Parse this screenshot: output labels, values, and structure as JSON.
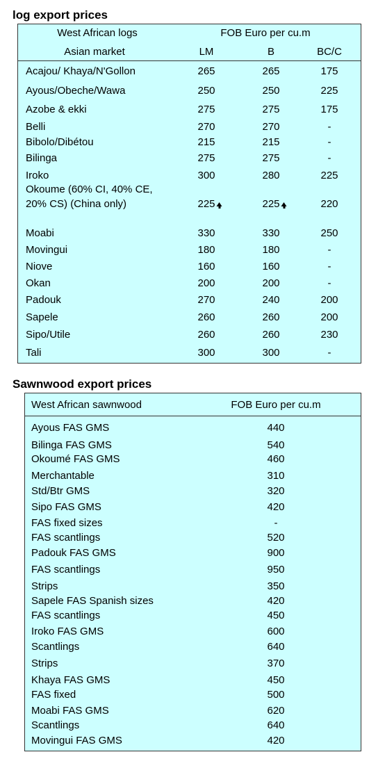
{
  "log_table": {
    "title": "log export prices",
    "header": {
      "group": "West African logs",
      "unit": "FOB Euro per cu.m",
      "market": "Asian market",
      "columns": [
        "LM",
        "B",
        "BC/C"
      ]
    },
    "rows": [
      [
        "Acajou/ Khaya/N'Gollon",
        265,
        265,
        175
      ],
      [
        "Ayous/Obeche/Wawa",
        250,
        250,
        225
      ],
      [
        "Azobe & ekki",
        275,
        275,
        175
      ],
      [
        "Belli",
        270,
        270,
        "-"
      ],
      [
        "Bibolo/Dibétou",
        215,
        215,
        "-"
      ],
      [
        "Bilinga",
        275,
        275,
        "-"
      ],
      [
        "Iroko",
        300,
        280,
        225
      ],
      [
        "Okoume (60% CI, 40% CE, 20% CS) (China only)",
        225,
        225,
        220
      ],
      [
        "Moabi",
        330,
        330,
        250
      ],
      [
        "Movingui",
        180,
        180,
        "-"
      ],
      [
        "Niove",
        160,
        160,
        "-"
      ],
      [
        "Okan",
        200,
        200,
        "-"
      ],
      [
        "Padouk",
        270,
        240,
        200
      ],
      [
        "Sapele",
        260,
        260,
        200
      ],
      [
        "Sipo/Utile",
        260,
        260,
        230
      ],
      [
        "Tali",
        300,
        300,
        "-"
      ]
    ]
  },
  "sawnwood_table": {
    "title": "Sawnwood export prices",
    "header": [
      "West African sawnwood",
      "FOB Euro per cu.m"
    ],
    "rows": [
      [
        "Ayous FAS GMS",
        440
      ],
      [
        "Bilinga FAS GMS",
        540
      ],
      [
        "Okoumé FAS GMS",
        460
      ],
      [
        "Merchantable",
        310
      ],
      [
        "Std/Btr GMS",
        320
      ],
      [
        "Sipo FAS GMS",
        420
      ],
      [
        "FAS fixed sizes",
        "-"
      ],
      [
        "FAS scantlings",
        520
      ],
      [
        "Padouk FAS GMS",
        900
      ],
      [
        "FAS scantlings",
        950
      ],
      [
        "Strips",
        350
      ],
      [
        "Sapele FAS Spanish sizes",
        420
      ],
      [
        "FAS scantlings",
        450
      ],
      [
        "Iroko FAS GMS",
        600
      ],
      [
        "Scantlings",
        640
      ],
      [
        "Strips",
        370
      ],
      [
        "Khaya FAS GMS",
        450
      ],
      [
        "FAS fixed",
        500
      ],
      [
        "Moabi FAS GMS",
        620
      ],
      [
        "Scantlings",
        640
      ],
      [
        "Movingui FAS GMS",
        420
      ]
    ]
  }
}
